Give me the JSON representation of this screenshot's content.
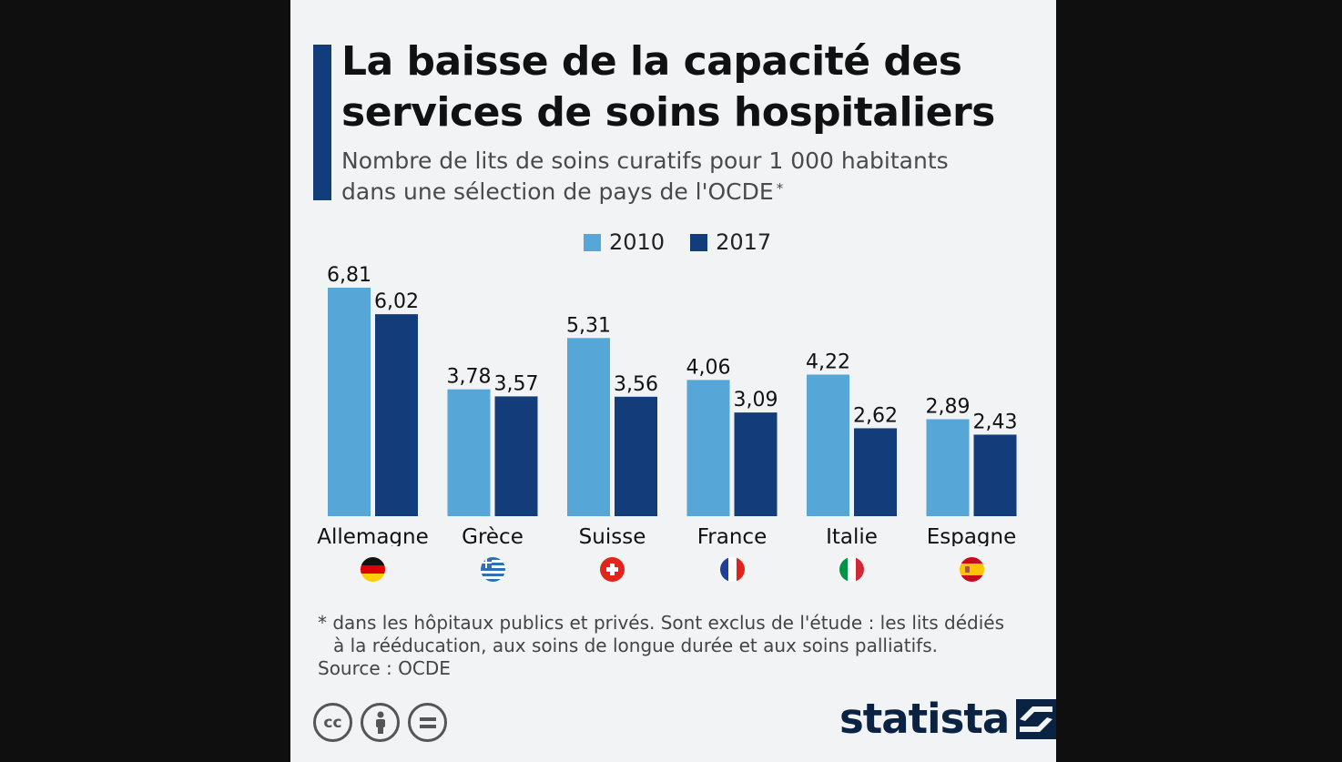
{
  "title_line1": "La baisse de la capacité des",
  "title_line2": "services de soins hospitaliers",
  "subtitle_line1": "Nombre de lits de soins curatifs pour 1 000 habitants",
  "subtitle_line2": "dans une sélection de pays de l'OCDE",
  "subtitle_marker": "*",
  "colors": {
    "accent": "#123d7a",
    "series_2010": "#56a6d8",
    "series_2017": "#123d7a"
  },
  "chart_data": {
    "type": "bar",
    "categories": [
      "Allemagne",
      "Grèce",
      "Suisse",
      "France",
      "Italie",
      "Espagne"
    ],
    "series": [
      {
        "name": "2010",
        "values": [
          6.81,
          3.78,
          5.31,
          4.06,
          4.22,
          2.89
        ],
        "labels": [
          "6,81",
          "3,78",
          "5,31",
          "4,06",
          "4,22",
          "2,89"
        ]
      },
      {
        "name": "2017",
        "values": [
          6.02,
          3.57,
          3.56,
          3.09,
          2.62,
          2.43
        ],
        "labels": [
          "6,02",
          "3,57",
          "3,56",
          "3,09",
          "2,62",
          "2,43"
        ]
      }
    ],
    "ylim": [
      0,
      6.81
    ],
    "legend": "top-center",
    "grid": false
  },
  "flags": [
    "germany-flag-icon",
    "greece-flag-icon",
    "switzerland-flag-icon",
    "france-flag-icon",
    "italy-flag-icon",
    "spain-flag-icon"
  ],
  "footnote_line1": "* dans les hôpitaux publics et privés. Sont exclus de l'étude : les lits dédiés",
  "footnote_line2": "à la rééducation, aux soins de longue durée et aux soins palliatifs.",
  "source": "Source : OCDE",
  "license_icons": [
    "creative-commons-icon",
    "attribution-icon",
    "no-derivatives-icon"
  ],
  "logo_text": "statista"
}
